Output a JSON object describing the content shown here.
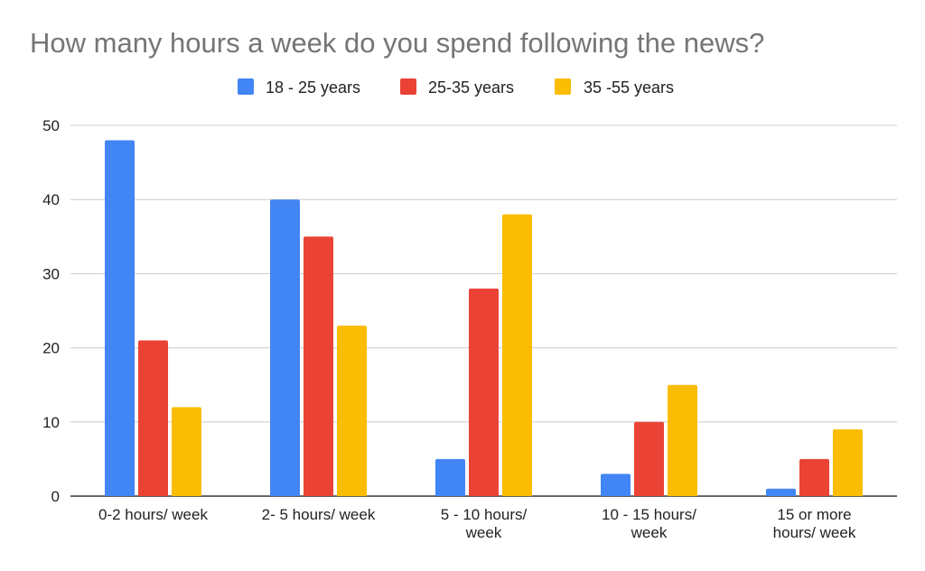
{
  "chart_data": {
    "type": "bar",
    "title": "How many hours a week do you spend following the news?",
    "xlabel": "",
    "ylabel": "",
    "categories": [
      [
        "0-2 hours/ week"
      ],
      [
        "2- 5 hours/ week"
      ],
      [
        "5 - 10 hours/",
        "week"
      ],
      [
        "10 - 15 hours/",
        "week"
      ],
      [
        "15 or more",
        "hours/ week"
      ]
    ],
    "series": [
      {
        "name": "18 - 25 years",
        "color": "#4285f4",
        "values": [
          48,
          40,
          5,
          3,
          1
        ]
      },
      {
        "name": "25-35 years",
        "color": "#ea4335",
        "values": [
          21,
          35,
          28,
          10,
          5
        ]
      },
      {
        "name": "35 -55 years",
        "color": "#fbbc04",
        "values": [
          12,
          23,
          38,
          15,
          9
        ]
      }
    ],
    "ylim": [
      0,
      50
    ],
    "yticks": [
      0,
      10,
      20,
      30,
      40,
      50
    ],
    "grid": true,
    "legend_position": "top"
  }
}
